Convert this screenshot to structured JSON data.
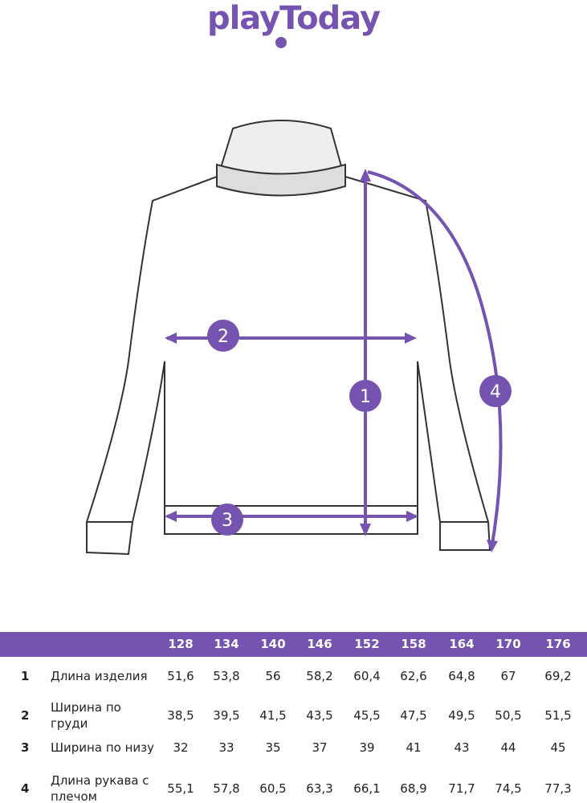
{
  "brand": {
    "logo_text": "playToday",
    "color": "#7553b0"
  },
  "diagram": {
    "markers": [
      "1",
      "2",
      "3",
      "4"
    ]
  },
  "table": {
    "sizes": [
      "128",
      "134",
      "140",
      "146",
      "152",
      "158",
      "164",
      "170",
      "176"
    ],
    "rows": [
      {
        "num": "1",
        "label": "Длина изделия",
        "values": [
          "51,6",
          "53,8",
          "56",
          "58,2",
          "60,4",
          "62,6",
          "64,8",
          "67",
          "69,2"
        ]
      },
      {
        "num": "2",
        "label": "Ширина по груди",
        "values": [
          "38,5",
          "39,5",
          "41,5",
          "43,5",
          "45,5",
          "47,5",
          "49,5",
          "50,5",
          "51,5"
        ]
      },
      {
        "num": "3",
        "label": "Ширина по низу",
        "values": [
          "32",
          "33",
          "35",
          "37",
          "39",
          "41",
          "43",
          "44",
          "45"
        ]
      },
      {
        "num": "4",
        "label": "Длина рукава с плечом",
        "values": [
          "55,1",
          "57,8",
          "60,5",
          "63,3",
          "66,1",
          "68,9",
          "71,7",
          "74,5",
          "77,3"
        ]
      }
    ]
  }
}
